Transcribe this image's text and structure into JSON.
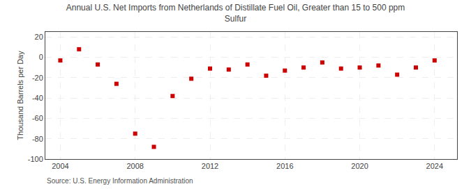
{
  "chart_data": {
    "type": "scatter",
    "title": "Annual U.S. Net Imports from Netherlands of Distillate Fuel Oil, Greater than 15 to 500 ppm\nSulfur",
    "ylabel": "Thousand Barrels per Day",
    "annotations": [
      "Source: U.S. Energy Information Administration"
    ],
    "x": [
      2004,
      2005,
      2006,
      2007,
      2008,
      2009,
      2010,
      2011,
      2012,
      2013,
      2014,
      2015,
      2016,
      2017,
      2018,
      2019,
      2020,
      2021,
      2022,
      2023,
      2024
    ],
    "values": [
      -3,
      8,
      -7,
      -26,
      -75,
      -88,
      -38,
      -21,
      -11,
      -12,
      -7,
      -18,
      -13,
      -10,
      -5,
      -11,
      -10,
      -8,
      -17,
      -10,
      -3
    ],
    "color": "#cc0000",
    "marker": "square",
    "xlim": [
      2003.2,
      2025.2
    ],
    "xticks": [
      2004,
      2008,
      2012,
      2016,
      2020,
      2024
    ],
    "ylim": [
      -100,
      25
    ],
    "yticks": [
      -100,
      -80,
      -60,
      -40,
      -20,
      0,
      20
    ],
    "grid": true
  }
}
